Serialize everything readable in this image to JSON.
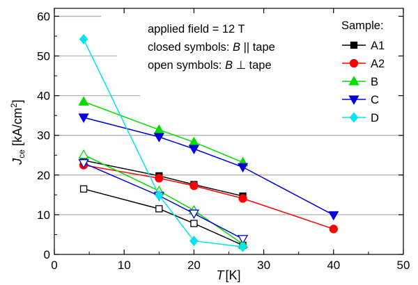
{
  "chart_data": {
    "type": "line",
    "xaxis": {
      "label_var": "T",
      "label_unit": "[K]",
      "range": [
        0,
        50
      ],
      "ticks": [
        0,
        10,
        20,
        30,
        40,
        50
      ]
    },
    "yaxis": {
      "label_var": "J",
      "label_sub": "ce",
      "label_unit": " [kA/cm",
      "label_sup": "2",
      "label_close": "]",
      "range": [
        0,
        62
      ],
      "ticks": [
        0,
        10,
        20,
        30,
        40,
        50,
        60
      ]
    },
    "grid": "horizontal",
    "annotations": {
      "line1": "applied field = 12 T",
      "line2_pre": "closed symbols: ",
      "line2_var": "B",
      "line2_post": " || tape",
      "line3_pre": "open symbols: ",
      "line3_var": "B",
      "line3_post": " ⊥ tape"
    },
    "legend_title": "Sample:",
    "legend_position": "top-right",
    "series": [
      {
        "name": "A1",
        "color": "#000000",
        "marker": "square",
        "closed": [
          [
            4.2,
            23.7
          ],
          [
            15,
            19.8
          ],
          [
            20,
            17.6
          ],
          [
            27,
            14.7
          ]
        ],
        "open": [
          [
            4.2,
            16.5
          ],
          [
            15,
            11.5
          ],
          [
            20,
            7.8
          ],
          [
            27,
            2.3
          ]
        ]
      },
      {
        "name": "A2",
        "color": "#ff0000",
        "marker": "circle",
        "closed": [
          [
            4.2,
            22.5
          ],
          [
            15,
            19.2
          ],
          [
            20,
            17.3
          ],
          [
            27,
            14.1
          ],
          [
            40,
            6.4
          ]
        ],
        "open": []
      },
      {
        "name": "B",
        "color": "#00dd00",
        "marker": "triangle-up",
        "closed": [
          [
            4.2,
            38.5
          ],
          [
            15,
            31.4
          ],
          [
            20,
            28.3
          ],
          [
            27,
            23.2
          ]
        ],
        "open": [
          [
            4.2,
            25.1
          ],
          [
            15,
            16.0
          ],
          [
            20,
            11.1
          ],
          [
            27,
            2.6
          ]
        ]
      },
      {
        "name": "C",
        "color": "#0000dd",
        "marker": "triangle-down",
        "closed": [
          [
            4.2,
            34.5
          ],
          [
            15,
            29.6
          ],
          [
            20,
            26.6
          ],
          [
            27,
            22.0
          ],
          [
            40,
            9.9
          ]
        ],
        "open": [
          [
            4.2,
            23.0
          ],
          [
            15,
            14.8
          ],
          [
            20,
            10.3
          ],
          [
            27,
            3.9
          ]
        ]
      },
      {
        "name": "D",
        "color": "#00e5ee",
        "marker": "diamond",
        "closed": [
          [
            4.2,
            54.2
          ],
          [
            15,
            14.9
          ],
          [
            20,
            3.4
          ],
          [
            27,
            1.9
          ]
        ],
        "open": []
      }
    ]
  }
}
